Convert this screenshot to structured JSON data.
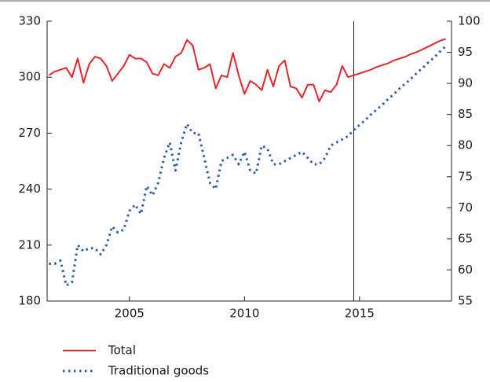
{
  "chart_data": {
    "type": "line",
    "x": [
      2001.5,
      2001.75,
      2002,
      2002.25,
      2002.5,
      2002.75,
      2003,
      2003.25,
      2003.5,
      2003.75,
      2004,
      2004.25,
      2004.5,
      2004.75,
      2005,
      2005.25,
      2005.5,
      2005.75,
      2006,
      2006.25,
      2006.5,
      2006.75,
      2007,
      2007.25,
      2007.5,
      2007.75,
      2008,
      2008.25,
      2008.5,
      2008.75,
      2009,
      2009.25,
      2009.5,
      2009.75,
      2010,
      2010.25,
      2010.5,
      2010.75,
      2011,
      2011.25,
      2011.5,
      2011.75,
      2012,
      2012.25,
      2012.5,
      2012.75,
      2013,
      2013.25,
      2013.5,
      2013.75,
      2014,
      2014.25,
      2014.5,
      2014.75,
      2015,
      2015.25,
      2015.5,
      2015.75,
      2016,
      2016.25,
      2016.5,
      2016.75,
      2017,
      2017.25,
      2017.5,
      2017.75,
      2018,
      2018.25,
      2018.5,
      2018.75
    ],
    "series": [
      {
        "name": "Total",
        "color": "#e3262b",
        "dash": false,
        "values": [
          301,
          303,
          304,
          305,
          300,
          310,
          297,
          307,
          311,
          310,
          306,
          298,
          302,
          306,
          312,
          310,
          310,
          308,
          302,
          301,
          307,
          305,
          311,
          313,
          320,
          317,
          304,
          305,
          307,
          294,
          301,
          300,
          313,
          301,
          291,
          298,
          296,
          293,
          304,
          295,
          306,
          309,
          295,
          294,
          289,
          296,
          296,
          287,
          293,
          292,
          296,
          306,
          300,
          301,
          302,
          303,
          304,
          305.5,
          306.5,
          307.5,
          309,
          310,
          311,
          312.5,
          313.5,
          315,
          316.5,
          318,
          319.5,
          320.5
        ]
      },
      {
        "name": "Traditional goods",
        "color": "#2a5caa",
        "dash": true,
        "axis": "y2",
        "values": [
          61,
          61,
          61.5,
          57.5,
          58,
          64,
          63,
          63.5,
          63.5,
          62.5,
          64,
          67,
          66,
          66.5,
          69.5,
          70.5,
          69,
          73.5,
          72,
          74,
          78,
          80.5,
          76,
          80.5,
          83.5,
          82,
          82,
          78,
          74,
          73,
          77.5,
          78,
          78.5,
          77,
          79,
          76,
          75.5,
          80,
          79.5,
          77,
          77,
          77.5,
          78,
          78.5,
          79,
          78,
          77,
          77,
          78,
          80,
          80.5,
          81,
          81.5,
          82.5,
          83.3,
          84.1,
          85,
          85.8,
          86.6,
          87.5,
          88.3,
          89.2,
          90,
          90.8,
          91.7,
          92.5,
          93.4,
          94.2,
          95.1,
          96
        ]
      }
    ],
    "xlim": [
      2001.42,
      2019
    ],
    "xticks": [
      2005,
      2010,
      2015
    ],
    "ylim": [
      180,
      330
    ],
    "yticks": [
      180,
      210,
      240,
      270,
      300,
      330
    ],
    "y2lim": [
      55,
      100
    ],
    "y2ticks": [
      55,
      60,
      65,
      70,
      75,
      80,
      85,
      90,
      95,
      100
    ],
    "vlines": [
      2014.75
    ]
  }
}
